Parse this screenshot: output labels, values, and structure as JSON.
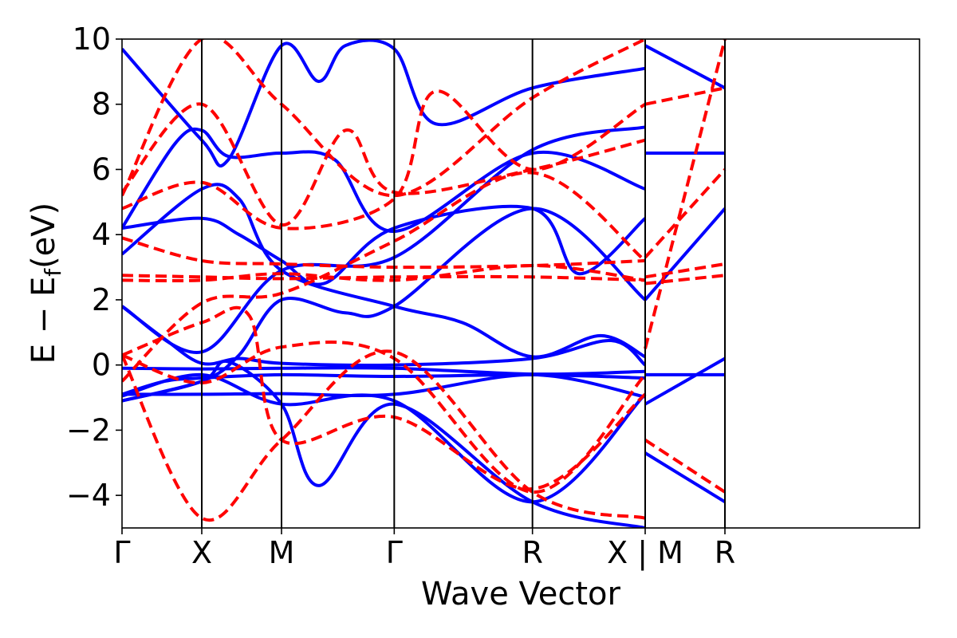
{
  "chart_data": {
    "type": "line",
    "title": "",
    "xlabel": "Wave Vector",
    "ylabel": "E − E",
    "ylabel_subscript": "f",
    "ylabel_unit": "(eV)",
    "ylim": [
      -5,
      10
    ],
    "xlim": [
      0,
      7.5
    ],
    "yticks": [
      -4,
      -2,
      0,
      2,
      4,
      6,
      8,
      10
    ],
    "ytick_labels": [
      "−4",
      "−2",
      "0",
      "2",
      "4",
      "6",
      "8",
      "10"
    ],
    "kpoints": [
      {
        "label": "Γ",
        "x": 0
      },
      {
        "label": "X",
        "x": 0.75
      },
      {
        "label": "M",
        "x": 1.5
      },
      {
        "label": "Γ",
        "x": 2.56
      },
      {
        "label": "R",
        "x": 3.86
      },
      {
        "label": "X | M",
        "x": 4.92
      },
      {
        "label": "R",
        "x": 5.67
      }
    ],
    "grid": false,
    "legend": "none",
    "colors": {
      "blue": "#0000ff",
      "red": "#ff0000"
    },
    "series": [
      {
        "style": "solid",
        "color": "blue",
        "segments": [
          {
            "xs": [
              0,
              0.75,
              1.5,
              2.56,
              3.86,
              4.92
            ],
            "ys": [
              -0.95,
              -0.3,
              -1.2,
              -1.1,
              -4.2,
              -0.9
            ]
          },
          {
            "xs": [
              0,
              0.4,
              0.75,
              1.5,
              2.56,
              3.86,
              4.92
            ],
            "ys": [
              -0.9,
              -0.5,
              -0.4,
              -0.3,
              -0.35,
              -0.3,
              -0.4
            ]
          },
          {
            "xs": [
              0,
              0.75,
              1.5,
              2.56,
              3.86,
              4.92
            ],
            "ys": [
              -0.1,
              -0.12,
              -0.1,
              -0.1,
              -0.28,
              -0.2
            ]
          },
          {
            "xs": [
              0,
              0.75,
              1.5,
              2.56,
              3.86,
              4.92
            ],
            "ys": [
              -0.9,
              -0.9,
              -0.88,
              -0.9,
              -0.3,
              -0.98
            ]
          },
          {
            "xs": [
              0,
              0.4,
              0.75,
              1.1,
              1.5,
              2.56,
              3.86,
              4.6,
              4.92
            ],
            "ys": [
              1.8,
              0.8,
              0.05,
              0.2,
              0.05,
              0,
              0.2,
              0.75,
              0.0
            ]
          },
          {
            "xs": [
              0,
              0.75,
              1.1,
              1.5,
              2.1,
              2.56,
              3.86,
              4.92
            ],
            "ys": [
              -1.1,
              -0.5,
              0.3,
              2.0,
              1.6,
              1.8,
              4.8,
              2.0
            ]
          },
          {
            "xs": [
              0,
              0.75,
              1.1,
              1.5,
              2.56,
              3.2,
              3.86,
              4.5,
              4.92
            ],
            "ys": [
              3.4,
              5.4,
              5.1,
              2.9,
              1.8,
              1.3,
              0.25,
              0.9,
              0.25
            ]
          },
          {
            "xs": [
              0,
              0.75,
              1.1,
              1.5,
              1.9,
              2.56,
              3.86,
              4.3,
              4.92
            ],
            "ys": [
              4.2,
              4.5,
              4.0,
              3.2,
              2.5,
              4.2,
              4.8,
              2.8,
              4.5
            ]
          },
          {
            "xs": [
              0,
              0.5,
              0.75,
              1.0,
              1.5,
              2.0,
              2.56,
              3.86,
              4.92
            ],
            "ys": [
              4.2,
              6.8,
              7.2,
              6.4,
              6.5,
              6.3,
              4.1,
              6.5,
              5.4
            ]
          },
          {
            "xs": [
              0,
              0.75,
              1.0,
              1.5,
              1.85,
              2.1,
              2.56,
              2.95,
              3.86,
              4.92
            ],
            "ys": [
              9.7,
              6.9,
              6.3,
              9.8,
              8.7,
              9.8,
              9.7,
              7.4,
              8.5,
              9.1
            ]
          },
          {
            "xs": [
              0,
              0.75,
              1.0,
              1.5,
              1.85,
              2.56,
              3.86,
              4.92
            ],
            "ys": [
              -1.1,
              -0.5,
              0.1,
              -1.2,
              -3.7,
              -1.2,
              -4.2,
              -5.0
            ]
          },
          {
            "xs": [
              0,
              0.75,
              1.5,
              2.56,
              3.86,
              4.92
            ],
            "ys": [
              1.8,
              0.4,
              2.9,
              3.3,
              6.6,
              7.3
            ]
          },
          {
            "xs": [
              4.92,
              5.67
            ],
            "ys": [
              9.8,
              8.5
            ]
          },
          {
            "xs": [
              4.92,
              5.67
            ],
            "ys": [
              6.5,
              6.5
            ]
          },
          {
            "xs": [
              4.92,
              5.67
            ],
            "ys": [
              2.0,
              4.8
            ]
          },
          {
            "xs": [
              4.92,
              5.67
            ],
            "ys": [
              -0.3,
              -0.3
            ]
          },
          {
            "xs": [
              4.92,
              5.67
            ],
            "ys": [
              -2.7,
              -4.2
            ]
          },
          {
            "xs": [
              4.92,
              5.67
            ],
            "ys": [
              -1.2,
              0.2
            ]
          }
        ]
      },
      {
        "style": "dashed",
        "color": "red",
        "segments": [
          {
            "xs": [
              0,
              0.75,
              1.5,
              2.56,
              3.86,
              4.92
            ],
            "ys": [
              2.75,
              2.7,
              2.65,
              2.7,
              2.7,
              2.6
            ]
          },
          {
            "xs": [
              0,
              0.75,
              1.5,
              2.56,
              3.86,
              4.92
            ],
            "ys": [
              2.6,
              2.6,
              2.8,
              2.6,
              3.05,
              2.6
            ]
          },
          {
            "xs": [
              0,
              0.75,
              1.5,
              2.56,
              3.86,
              4.92
            ],
            "ys": [
              3.9,
              3.2,
              3.1,
              3.0,
              3.05,
              3.2
            ]
          },
          {
            "xs": [
              0,
              0.75,
              1.5,
              2.56,
              3.86,
              4.92
            ],
            "ys": [
              0.3,
              -0.55,
              0.55,
              0.2,
              -3.9,
              -0.3
            ]
          },
          {
            "xs": [
              0,
              0.75,
              1.5,
              2.56,
              3.86,
              4.92
            ],
            "ys": [
              0.3,
              -4.7,
              -2.3,
              0.4,
              -3.9,
              -4.7
            ]
          },
          {
            "xs": [
              0,
              0.75,
              1.5,
              2.1,
              2.56,
              3.86,
              4.92
            ],
            "ys": [
              5.3,
              8.0,
              4.3,
              7.2,
              5.3,
              6.0,
              6.9
            ]
          },
          {
            "xs": [
              0,
              0.75,
              1.5,
              2.56,
              2.95,
              3.86,
              4.92
            ],
            "ys": [
              4.8,
              5.6,
              4.2,
              5.1,
              8.4,
              6.0,
              8.0
            ]
          },
          {
            "xs": [
              0,
              0.75,
              1.2,
              1.5,
              2.56,
              3.86,
              4.92
            ],
            "ys": [
              0.3,
              1.3,
              1.5,
              -2.3,
              -1.6,
              -3.8,
              -0.9
            ]
          },
          {
            "xs": [
              0,
              0.75,
              1.5,
              2.56,
              3.86,
              4.92
            ],
            "ys": [
              -0.5,
              1.9,
              2.2,
              3.8,
              5.9,
              3.2
            ]
          },
          {
            "xs": [
              0,
              0.75,
              1.5,
              2.56,
              3.86,
              4.92
            ],
            "ys": [
              5.2,
              10.0,
              8.0,
              5.2,
              8.2,
              10.0
            ]
          },
          {
            "xs": [
              4.92,
              5.67
            ],
            "ys": [
              8.0,
              8.5
            ]
          },
          {
            "xs": [
              4.92,
              5.67
            ],
            "ys": [
              3.3,
              6.0
            ]
          },
          {
            "xs": [
              4.92,
              5.67
            ],
            "ys": [
              2.7,
              3.1
            ]
          },
          {
            "xs": [
              4.92,
              5.67
            ],
            "ys": [
              2.5,
              2.75
            ]
          },
          {
            "xs": [
              4.92,
              5.67
            ],
            "ys": [
              -2.3,
              -3.9
            ]
          },
          {
            "xs": [
              4.92,
              5.67
            ],
            "ys": [
              0.5,
              10.0
            ]
          }
        ]
      }
    ]
  }
}
